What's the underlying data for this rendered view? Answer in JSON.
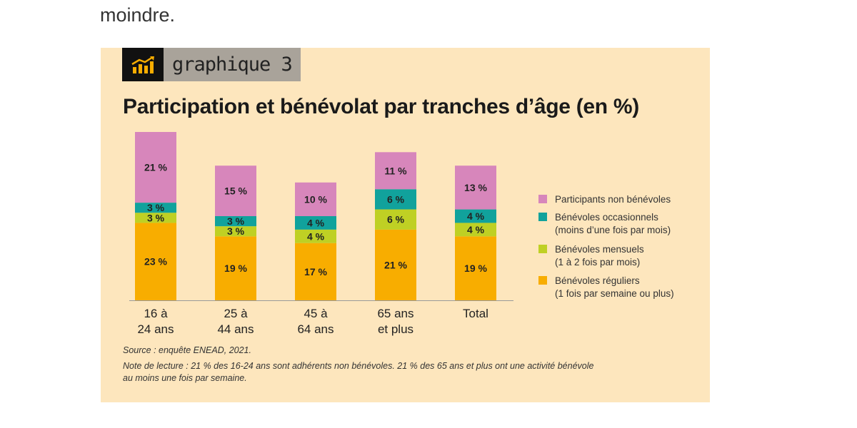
{
  "page": {
    "intro_text": "moindre."
  },
  "badge": {
    "icon": "chart-trend-icon",
    "label": "graphique 3"
  },
  "colors": {
    "participants_non_benevoles": "#d786bb",
    "benevoles_occasionnels": "#11a29c",
    "benevoles_mensuels": "#bfd024",
    "benevoles_reguliers": "#f8ad00",
    "panel_bg": "#fde6bd"
  },
  "chart_data": {
    "type": "bar",
    "stacked": true,
    "title": "Participation et bénévolat par tranches d’âge (en %)",
    "categories": [
      [
        "16 à",
        "24 ans"
      ],
      [
        "25 à",
        "44 ans"
      ],
      [
        "45 à",
        "64 ans"
      ],
      [
        "65 ans",
        "et plus"
      ],
      [
        "Total"
      ]
    ],
    "series": [
      {
        "key": "benevoles_reguliers",
        "name": "Bénévoles réguliers",
        "sub": "(1 fois par semaine ou plus)",
        "values": [
          23,
          19,
          17,
          21,
          19
        ],
        "labels": [
          "23 %",
          "19 %",
          "17 %",
          "21 %",
          "19 %"
        ]
      },
      {
        "key": "benevoles_mensuels",
        "name": "Bénévoles mensuels",
        "sub": "(1 à 2 fois par mois)",
        "values": [
          3,
          3,
          4,
          6,
          4
        ],
        "labels": [
          "3 %",
          "3 %",
          "4 %",
          "6 %",
          "4 %"
        ]
      },
      {
        "key": "benevoles_occasionnels",
        "name": "Bénévoles occasionnels",
        "sub": "(moins d’une fois par mois)",
        "values": [
          3,
          3,
          4,
          6,
          4
        ],
        "labels": [
          "3 %",
          "3 %",
          "4 %",
          "6 %",
          "4 %"
        ]
      },
      {
        "key": "participants_non_benevoles",
        "name": "Participants non bénévoles",
        "sub": "",
        "values": [
          21,
          15,
          10,
          11,
          13
        ],
        "labels": [
          "21 %",
          "15 %",
          "10 %",
          "11 %",
          "13 %"
        ]
      }
    ],
    "legend_order": [
      "participants_non_benevoles",
      "benevoles_occasionnels",
      "benevoles_mensuels",
      "benevoles_reguliers"
    ],
    "ylim": [
      0,
      50
    ],
    "grid": false,
    "legend_position": "right"
  },
  "notes": {
    "source": "Source : enquête ENEAD, 2021.",
    "reading_line1": "Note de lecture : 21 % des 16-24 ans sont adhérents non bénévoles. 21 % des 65 ans et plus ont une activité bénévole",
    "reading_line2": "au moins une fois par semaine."
  }
}
